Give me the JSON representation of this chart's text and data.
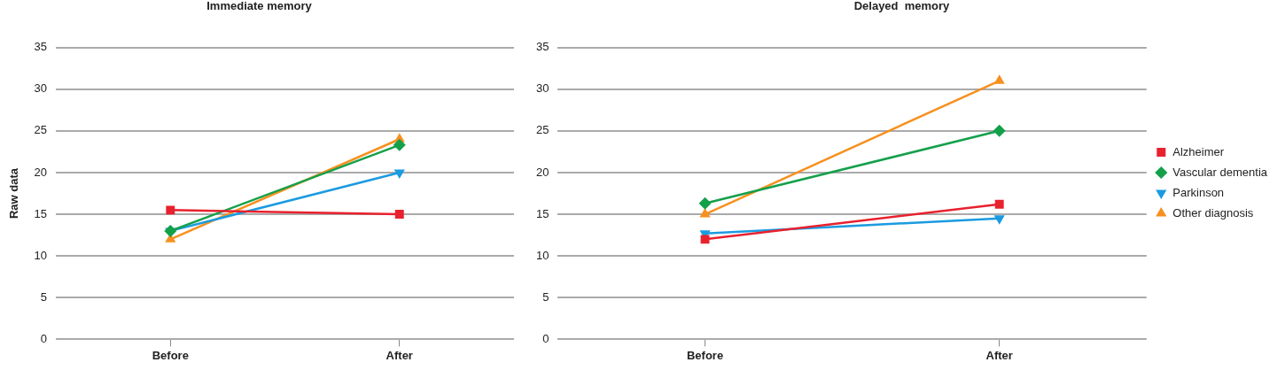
{
  "chart_data": [
    {
      "type": "line",
      "title": "Immediate memory",
      "ylabel": "Raw data",
      "categories": [
        "Before",
        "After"
      ],
      "ylim": [
        0,
        35
      ],
      "yticks": [
        0,
        5,
        10,
        15,
        20,
        25,
        30,
        35
      ],
      "grid": "y",
      "legend": false,
      "line_style": "solid",
      "series": [
        {
          "color": "#e8212e",
          "marker": "square",
          "values": [
            15.5,
            15
          ]
        },
        {
          "color": "#14a04a",
          "marker": "diamond",
          "values": [
            13,
            23.3
          ]
        },
        {
          "color": "#1b9be0",
          "marker": "triangle-down",
          "values": [
            13,
            20
          ]
        },
        {
          "color": "#f7901e",
          "marker": "triangle",
          "values": [
            12,
            24
          ]
        }
      ]
    },
    {
      "type": "line",
      "title": "Delayed  memory",
      "categories": [
        "Before",
        "After"
      ],
      "ylim": [
        0,
        35
      ],
      "yticks": [
        0,
        5,
        10,
        15,
        20,
        25,
        30,
        35
      ],
      "grid": "y",
      "legend": "right",
      "line_style": "solid",
      "series": [
        {
          "name": "Alzheimer",
          "color": "#e8212e",
          "marker": "square",
          "values": [
            12,
            16.2
          ]
        },
        {
          "name": "Vascular dementia",
          "color": "#14a04a",
          "marker": "diamond",
          "values": [
            16.3,
            25
          ]
        },
        {
          "name": "Parkinson",
          "color": "#1b9be0",
          "marker": "triangle-down",
          "values": [
            12.7,
            14.5
          ]
        },
        {
          "name": "Other diagnosis",
          "color": "#f7901e",
          "marker": "triangle",
          "values": [
            15,
            31
          ]
        }
      ]
    }
  ]
}
